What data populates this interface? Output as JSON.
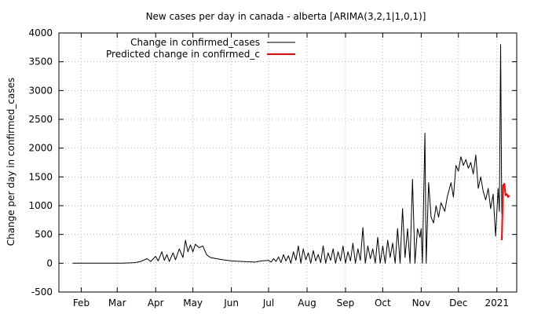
{
  "chart_data": {
    "type": "line",
    "title": "New cases per day in canada - alberta [ARIMA(3,2,1|1,0,1)]",
    "xlabel": "",
    "ylabel": "Change per day in confirmed_cases",
    "ylim": [
      -500,
      4000
    ],
    "yticks": [
      -500,
      0,
      500,
      1000,
      1500,
      2000,
      2500,
      3000,
      3500,
      4000
    ],
    "xlim": [
      "2020-01-14",
      "2021-01-17"
    ],
    "xticks": [
      {
        "label": "Feb",
        "date": "2020-02-01"
      },
      {
        "label": "Mar",
        "date": "2020-03-01"
      },
      {
        "label": "Apr",
        "date": "2020-04-01"
      },
      {
        "label": "May",
        "date": "2020-05-01"
      },
      {
        "label": "Jun",
        "date": "2020-06-01"
      },
      {
        "label": "Jul",
        "date": "2020-07-01"
      },
      {
        "label": "Aug",
        "date": "2020-08-01"
      },
      {
        "label": "Sep",
        "date": "2020-09-01"
      },
      {
        "label": "Oct",
        "date": "2020-10-01"
      },
      {
        "label": "Nov",
        "date": "2020-11-01"
      },
      {
        "label": "Dec",
        "date": "2020-12-01"
      },
      {
        "label": "2021",
        "date": "2021-01-01"
      }
    ],
    "grid": true,
    "legend_position": "top-left",
    "series": [
      {
        "name": "Change in confirmed_cases",
        "color": "#000000",
        "points": [
          [
            "2020-01-25",
            0
          ],
          [
            "2020-03-05",
            0
          ],
          [
            "2020-03-15",
            10
          ],
          [
            "2020-03-20",
            30
          ],
          [
            "2020-03-25",
            80
          ],
          [
            "2020-03-28",
            30
          ],
          [
            "2020-04-01",
            120
          ],
          [
            "2020-04-03",
            40
          ],
          [
            "2020-04-06",
            200
          ],
          [
            "2020-04-08",
            50
          ],
          [
            "2020-04-10",
            150
          ],
          [
            "2020-04-12",
            30
          ],
          [
            "2020-04-15",
            180
          ],
          [
            "2020-04-17",
            60
          ],
          [
            "2020-04-20",
            250
          ],
          [
            "2020-04-23",
            100
          ],
          [
            "2020-04-25",
            400
          ],
          [
            "2020-04-27",
            200
          ],
          [
            "2020-04-29",
            320
          ],
          [
            "2020-05-01",
            200
          ],
          [
            "2020-05-03",
            330
          ],
          [
            "2020-05-06",
            270
          ],
          [
            "2020-05-09",
            300
          ],
          [
            "2020-05-12",
            150
          ],
          [
            "2020-05-15",
            100
          ],
          [
            "2020-05-20",
            80
          ],
          [
            "2020-05-25",
            60
          ],
          [
            "2020-06-01",
            40
          ],
          [
            "2020-06-10",
            30
          ],
          [
            "2020-06-20",
            20
          ],
          [
            "2020-06-25",
            40
          ],
          [
            "2020-07-01",
            50
          ],
          [
            "2020-07-03",
            20
          ],
          [
            "2020-07-05",
            80
          ],
          [
            "2020-07-07",
            30
          ],
          [
            "2020-07-09",
            110
          ],
          [
            "2020-07-11",
            10
          ],
          [
            "2020-07-13",
            150
          ],
          [
            "2020-07-15",
            40
          ],
          [
            "2020-07-17",
            130
          ],
          [
            "2020-07-19",
            0
          ],
          [
            "2020-07-21",
            200
          ],
          [
            "2020-07-23",
            50
          ],
          [
            "2020-07-25",
            300
          ],
          [
            "2020-07-27",
            0
          ],
          [
            "2020-07-29",
            250
          ],
          [
            "2020-07-31",
            60
          ],
          [
            "2020-08-02",
            180
          ],
          [
            "2020-08-04",
            0
          ],
          [
            "2020-08-06",
            220
          ],
          [
            "2020-08-08",
            40
          ],
          [
            "2020-08-10",
            150
          ],
          [
            "2020-08-12",
            10
          ],
          [
            "2020-08-14",
            300
          ],
          [
            "2020-08-16",
            0
          ],
          [
            "2020-08-18",
            180
          ],
          [
            "2020-08-20",
            50
          ],
          [
            "2020-08-22",
            250
          ],
          [
            "2020-08-24",
            0
          ],
          [
            "2020-08-26",
            200
          ],
          [
            "2020-08-28",
            40
          ],
          [
            "2020-08-30",
            300
          ],
          [
            "2020-09-01",
            0
          ],
          [
            "2020-09-03",
            200
          ],
          [
            "2020-09-05",
            40
          ],
          [
            "2020-09-07",
            350
          ],
          [
            "2020-09-09",
            0
          ],
          [
            "2020-09-11",
            250
          ],
          [
            "2020-09-13",
            50
          ],
          [
            "2020-09-15",
            620
          ],
          [
            "2020-09-17",
            0
          ],
          [
            "2020-09-19",
            300
          ],
          [
            "2020-09-21",
            80
          ],
          [
            "2020-09-23",
            250
          ],
          [
            "2020-09-25",
            0
          ],
          [
            "2020-09-27",
            450
          ],
          [
            "2020-09-29",
            0
          ],
          [
            "2020-10-01",
            300
          ],
          [
            "2020-10-03",
            0
          ],
          [
            "2020-10-05",
            400
          ],
          [
            "2020-10-07",
            100
          ],
          [
            "2020-10-09",
            350
          ],
          [
            "2020-10-11",
            0
          ],
          [
            "2020-10-13",
            600
          ],
          [
            "2020-10-15",
            0
          ],
          [
            "2020-10-17",
            950
          ],
          [
            "2020-10-19",
            100
          ],
          [
            "2020-10-21",
            600
          ],
          [
            "2020-10-23",
            0
          ],
          [
            "2020-10-25",
            1460
          ],
          [
            "2020-10-27",
            0
          ],
          [
            "2020-10-29",
            600
          ],
          [
            "2020-10-31",
            450
          ],
          [
            "2020-11-01",
            600
          ],
          [
            "2020-11-02",
            0
          ],
          [
            "2020-11-04",
            2260
          ],
          [
            "2020-11-05",
            0
          ],
          [
            "2020-11-07",
            1400
          ],
          [
            "2020-11-09",
            800
          ],
          [
            "2020-11-11",
            700
          ],
          [
            "2020-11-13",
            1000
          ],
          [
            "2020-11-15",
            800
          ],
          [
            "2020-11-17",
            1050
          ],
          [
            "2020-11-20",
            900
          ],
          [
            "2020-11-22",
            1150
          ],
          [
            "2020-11-25",
            1400
          ],
          [
            "2020-11-27",
            1150
          ],
          [
            "2020-11-29",
            1700
          ],
          [
            "2020-12-01",
            1600
          ],
          [
            "2020-12-03",
            1850
          ],
          [
            "2020-12-05",
            1700
          ],
          [
            "2020-12-07",
            1800
          ],
          [
            "2020-12-09",
            1650
          ],
          [
            "2020-12-11",
            1750
          ],
          [
            "2020-12-13",
            1550
          ],
          [
            "2020-12-15",
            1880
          ],
          [
            "2020-12-17",
            1300
          ],
          [
            "2020-12-19",
            1500
          ],
          [
            "2020-12-21",
            1250
          ],
          [
            "2020-12-23",
            1100
          ],
          [
            "2020-12-25",
            1300
          ],
          [
            "2020-12-27",
            950
          ],
          [
            "2020-12-29",
            1200
          ],
          [
            "2020-12-31",
            470
          ],
          [
            "2021-01-02",
            1300
          ],
          [
            "2021-01-03",
            900
          ],
          [
            "2021-01-04",
            3800
          ],
          [
            "2021-01-05",
            850
          ]
        ]
      },
      {
        "name": "Predicted change in confirmed_c",
        "color": "#ff0000",
        "points": [
          [
            "2021-01-05",
            400
          ],
          [
            "2021-01-06",
            1350
          ],
          [
            "2021-01-07",
            1380
          ],
          [
            "2021-01-08",
            1180
          ],
          [
            "2021-01-09",
            1200
          ],
          [
            "2021-01-10",
            1150
          ],
          [
            "2021-01-11",
            1180
          ]
        ]
      }
    ]
  }
}
